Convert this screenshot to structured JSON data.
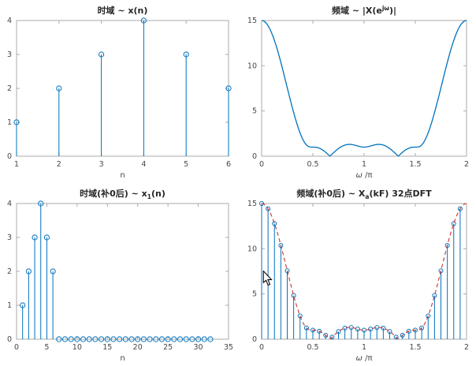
{
  "figure": {
    "background": "#ffffff",
    "colors": {
      "stem": "#0072BD",
      "line": "#0072BD",
      "dashed": "#CC3333",
      "axis": "#ababab",
      "tick_label": "#474747",
      "title": "#262626"
    }
  },
  "sequence": [
    1,
    2,
    3,
    4,
    3,
    2
  ],
  "chart_data": [
    {
      "id": "x-n",
      "type": "stem",
      "title": [
        {
          "t": "时域 ~ x(n)"
        }
      ],
      "xlabel": [
        {
          "t": "n"
        }
      ],
      "x": [
        1,
        2,
        3,
        4,
        5,
        6
      ],
      "values": [
        1,
        2,
        3,
        4,
        3,
        2
      ],
      "xlim": [
        1,
        6
      ],
      "ylim": [
        0,
        4
      ],
      "xticks": [
        1,
        2,
        3,
        4,
        5,
        6
      ],
      "yticks": [
        0,
        1,
        2,
        3,
        4
      ],
      "grid": false,
      "legend": null
    },
    {
      "id": "dtft-magnitude",
      "type": "line",
      "title": [
        {
          "t": "频域 ~ |X(e"
        },
        {
          "t": "jω",
          "sup": true
        },
        {
          "t": ")|"
        }
      ],
      "xlabel": [
        {
          "t": "ω",
          "italic": true
        },
        {
          "t": " /π"
        }
      ],
      "curve": "dtft",
      "curve_description": "magnitude of DTFT of sequence [1,2,3,4,3,2], 15 at ω=0 and ω=2π, dips near 0.2 at ω/π≈0.69 and 1.31, small ripples ≈1 in the middle",
      "xlim": [
        0,
        2
      ],
      "ylim": [
        0,
        15
      ],
      "xticks": [
        0,
        0.5,
        1,
        1.5,
        2
      ],
      "yticks": [
        0,
        5,
        10,
        15
      ],
      "grid": false,
      "legend": null
    },
    {
      "id": "x1-n-padded",
      "type": "stem",
      "title": [
        {
          "t": "时域(补0后) ~ x"
        },
        {
          "t": "1",
          "sub": true
        },
        {
          "t": "(n)"
        }
      ],
      "xlabel": [
        {
          "t": "n"
        }
      ],
      "x": [
        1,
        2,
        3,
        4,
        5,
        6,
        7,
        8,
        9,
        10,
        11,
        12,
        13,
        14,
        15,
        16,
        17,
        18,
        19,
        20,
        21,
        22,
        23,
        24,
        25,
        26,
        27,
        28,
        29,
        30,
        31,
        32
      ],
      "values": [
        1,
        2,
        3,
        4,
        3,
        2,
        0,
        0,
        0,
        0,
        0,
        0,
        0,
        0,
        0,
        0,
        0,
        0,
        0,
        0,
        0,
        0,
        0,
        0,
        0,
        0,
        0,
        0,
        0,
        0,
        0,
        0
      ],
      "xlim": [
        0,
        35
      ],
      "ylim": [
        0,
        4
      ],
      "xticks": [
        0,
        5,
        10,
        15,
        20,
        25,
        30,
        35
      ],
      "yticks": [
        0,
        1,
        2,
        3,
        4
      ],
      "grid": false,
      "legend": null
    },
    {
      "id": "dft-32",
      "type": "stem",
      "overlay": "dtft-dashed",
      "title": [
        {
          "t": "频域(补0后) ~ X"
        },
        {
          "t": "a",
          "sub": true
        },
        {
          "t": "(kF) 32点DFT"
        }
      ],
      "xlabel": [
        {
          "t": "ω",
          "italic": true
        },
        {
          "t": " /π"
        }
      ],
      "x": [
        0,
        0.0625,
        0.125,
        0.1875,
        0.25,
        0.3125,
        0.375,
        0.4375,
        0.5,
        0.5625,
        0.625,
        0.6875,
        0.75,
        0.8125,
        0.875,
        0.9375,
        1,
        1.0625,
        1.125,
        1.1875,
        1.25,
        1.3125,
        1.375,
        1.4375,
        1.5,
        1.5625,
        1.625,
        1.6875,
        1.75,
        1.8125,
        1.875,
        1.9375
      ],
      "values": [
        15,
        14.422,
        12.788,
        10.371,
        7.569,
        4.826,
        2.572,
        1.24,
        1,
        0.888,
        0.432,
        0.227,
        0.846,
        1.227,
        1.292,
        1.126,
        1,
        1.126,
        1.292,
        1.227,
        0.846,
        0.227,
        0.432,
        0.888,
        1,
        1.24,
        2.572,
        4.826,
        7.569,
        10.371,
        12.788,
        14.422
      ],
      "xlim": [
        0,
        2
      ],
      "ylim": [
        0,
        15
      ],
      "xticks": [
        0,
        0.5,
        1,
        1.5,
        2
      ],
      "yticks": [
        0,
        5,
        10,
        15
      ],
      "grid": false,
      "legend": null
    }
  ]
}
